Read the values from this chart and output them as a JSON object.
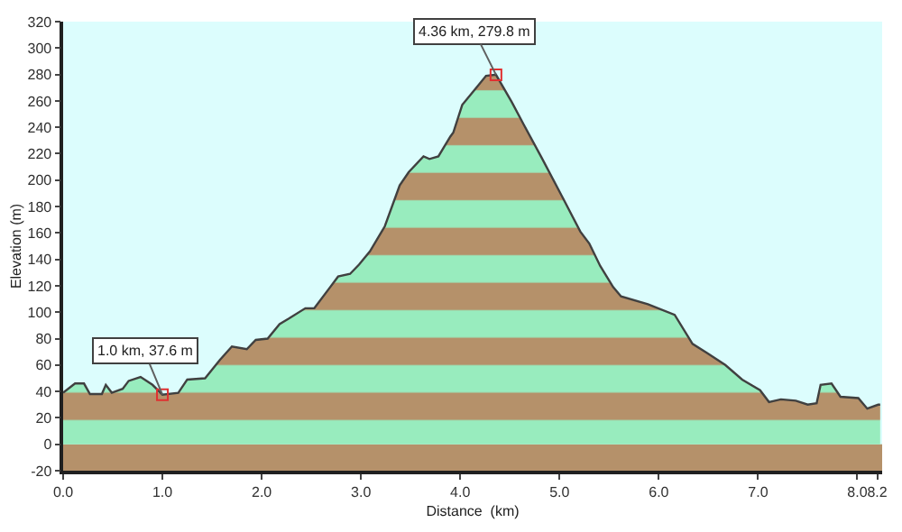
{
  "chart_data": {
    "type": "area",
    "xlabel": "Distance  (km)",
    "ylabel": "Elevation (m)",
    "x": [
      0,
      0.12,
      0.21,
      0.27,
      0.39,
      0.43,
      0.49,
      0.6,
      0.66,
      0.78,
      0.9,
      1.0,
      1.16,
      1.25,
      1.43,
      1.58,
      1.7,
      1.85,
      1.94,
      2.06,
      2.18,
      2.27,
      2.44,
      2.53,
      2.68,
      2.77,
      2.89,
      2.98,
      3.09,
      3.24,
      3.39,
      3.48,
      3.63,
      3.69,
      3.78,
      3.9,
      3.93,
      4.02,
      4.14,
      4.26,
      4.36,
      4.52,
      4.64,
      4.82,
      5.03,
      5.21,
      5.3,
      5.41,
      5.54,
      5.62,
      5.89,
      6.16,
      6.34,
      6.49,
      6.67,
      6.84,
      7.02,
      7.11,
      7.23,
      7.38,
      7.5,
      7.59,
      7.63,
      7.74,
      7.83,
      8.01,
      8.1,
      8.21,
      8.23
    ],
    "series": [
      {
        "color": "#b5916a",
        "values": [
          39,
          46,
          46,
          38,
          38,
          45,
          39,
          42,
          48,
          51,
          45,
          37.6,
          39,
          49,
          50,
          64,
          74,
          72,
          79,
          80,
          91,
          95,
          103,
          103,
          118,
          127,
          129,
          136,
          146,
          165,
          196,
          206,
          218,
          216,
          218,
          233,
          236,
          257,
          268,
          279,
          279.8,
          259,
          242,
          217,
          187,
          161,
          152,
          135,
          119,
          112,
          106,
          98,
          76,
          69,
          60,
          49,
          41,
          32,
          34,
          33,
          30,
          31,
          45,
          46,
          36,
          35,
          27,
          30,
          30
        ]
      }
    ],
    "xlim": [
      0,
      8.25
    ],
    "xticks": [
      {
        "value": 0,
        "label": "0.0"
      },
      {
        "value": 1,
        "label": "1.0"
      },
      {
        "value": 2,
        "label": "2.0"
      },
      {
        "value": 3,
        "label": "3.0"
      },
      {
        "value": 4,
        "label": "4.0"
      },
      {
        "value": 5,
        "label": "5.0"
      },
      {
        "value": 6,
        "label": "6.0"
      },
      {
        "value": 7,
        "label": "7.0"
      },
      {
        "value": 8,
        "label": "8.0"
      },
      {
        "value": 8.2,
        "label": "8.2"
      }
    ],
    "ylim": [
      -20,
      320
    ],
    "yticks": [
      -20,
      0,
      20,
      40,
      60,
      80,
      100,
      120,
      140,
      160,
      180,
      200,
      220,
      240,
      260,
      280,
      300,
      320
    ],
    "annotations": [
      {
        "text": "4.36 km, 279.8 m",
        "x": 4.36,
        "y": 279.8
      },
      {
        "text": "1.0 km, 37.6 m",
        "x": 1.0,
        "y": 37.6
      }
    ],
    "bands": [
      {
        "axis": "y",
        "from": -20,
        "to": 0,
        "color": "#b5916a"
      }
    ],
    "grid": false
  }
}
